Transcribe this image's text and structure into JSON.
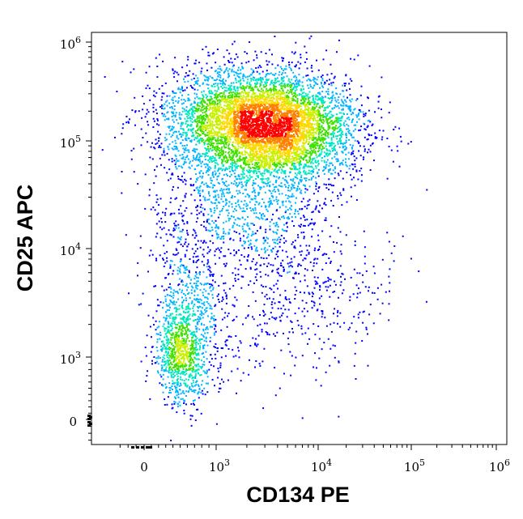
{
  "chart_data": {
    "type": "scatter",
    "subtype": "flow-cytometry density dot plot",
    "xlabel": "CD134 PE",
    "ylabel": "CD25 APC",
    "x_scale": "biexponential (log with linear region near zero)",
    "y_scale": "biexponential (log with linear region near zero)",
    "xlim": [
      -300,
      1200000
    ],
    "ylim": [
      -200,
      1150000
    ],
    "x_ticks": [
      {
        "value": 0,
        "base": "0",
        "exp": ""
      },
      {
        "value": 1000,
        "base": "10",
        "exp": "3"
      },
      {
        "value": 10000,
        "base": "10",
        "exp": "4"
      },
      {
        "value": 100000,
        "base": "10",
        "exp": "5"
      },
      {
        "value": 1000000,
        "base": "10",
        "exp": "6"
      }
    ],
    "y_ticks": [
      {
        "value": 0,
        "base": "0",
        "exp": ""
      },
      {
        "value": 1000,
        "base": "10",
        "exp": "3"
      },
      {
        "value": 10000,
        "base": "10",
        "exp": "4"
      },
      {
        "value": 100000,
        "base": "10",
        "exp": "5"
      },
      {
        "value": 1000000,
        "base": "10",
        "exp": "6"
      }
    ],
    "density_colors": [
      "#0000ff",
      "#00b4ff",
      "#00e8c0",
      "#40e000",
      "#c8f000",
      "#ffd800",
      "#ff8000",
      "#ff0000"
    ],
    "populations": [
      {
        "center_x": 3000,
        "center_y": 150000,
        "fraction": 0.66,
        "density": "high"
      },
      {
        "center_x": 2000,
        "center_y": 30000,
        "fraction": 0.14,
        "density": "medium"
      },
      {
        "center_x": 500,
        "center_y": 1100,
        "fraction": 0.1,
        "density": "medium"
      },
      {
        "center_x": 700,
        "center_y": 4000,
        "fraction": 0.06,
        "density": "low"
      },
      {
        "center_x": 7000,
        "center_y": 3000,
        "fraction": 0.04,
        "density": "low"
      }
    ],
    "grid": false,
    "legend": "none"
  }
}
